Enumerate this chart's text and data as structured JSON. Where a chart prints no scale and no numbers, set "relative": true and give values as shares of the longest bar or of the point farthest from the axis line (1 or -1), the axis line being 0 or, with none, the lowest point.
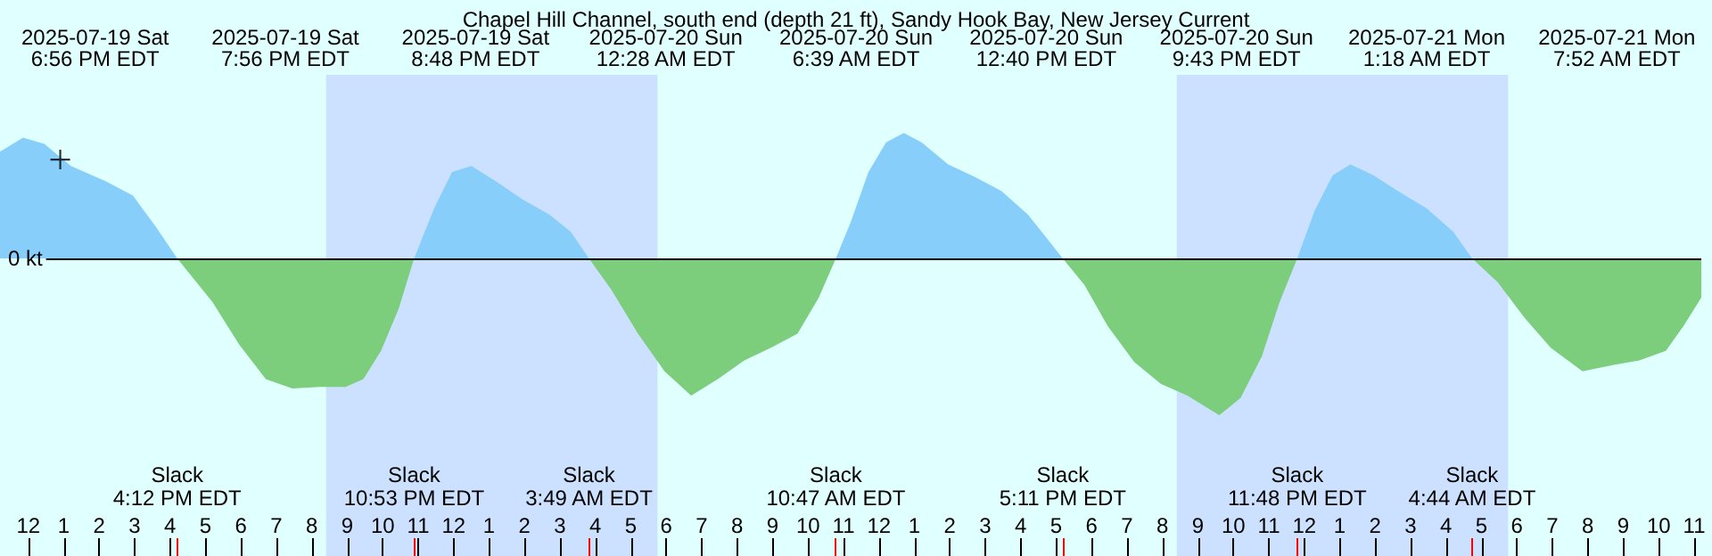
{
  "chart_data": {
    "type": "area",
    "title": "Chapel Hill Channel, south end (depth 21 ft), Sandy Hook Bay, New Jersey Current",
    "relative": true,
    "grid": false,
    "tick_labels": "x",
    "xlim": [
      "2025-07-19T11:12",
      "2025-07-21T11:12"
    ],
    "xticks": [
      {
        "value": "2025-07-19T12:00",
        "label": "12"
      },
      {
        "value": "2025-07-19T13:00",
        "label": "1"
      },
      {
        "value": "2025-07-19T14:00",
        "label": "2"
      },
      {
        "value": "2025-07-19T15:00",
        "label": "3"
      },
      {
        "value": "2025-07-19T16:00",
        "label": "4"
      },
      {
        "value": "2025-07-19T17:00",
        "label": "5"
      },
      {
        "value": "2025-07-19T18:00",
        "label": "6"
      },
      {
        "value": "2025-07-19T19:00",
        "label": "7"
      },
      {
        "value": "2025-07-19T20:00",
        "label": "8"
      },
      {
        "value": "2025-07-19T21:00",
        "label": "9"
      },
      {
        "value": "2025-07-19T22:00",
        "label": "10"
      },
      {
        "value": "2025-07-19T23:00",
        "label": "11"
      },
      {
        "value": "2025-07-20T00:00",
        "label": "12"
      },
      {
        "value": "2025-07-20T01:00",
        "label": "1"
      },
      {
        "value": "2025-07-20T02:00",
        "label": "2"
      },
      {
        "value": "2025-07-20T03:00",
        "label": "3"
      },
      {
        "value": "2025-07-20T04:00",
        "label": "4"
      },
      {
        "value": "2025-07-20T05:00",
        "label": "5"
      },
      {
        "value": "2025-07-20T06:00",
        "label": "6"
      },
      {
        "value": "2025-07-20T07:00",
        "label": "7"
      },
      {
        "value": "2025-07-20T08:00",
        "label": "8"
      },
      {
        "value": "2025-07-20T09:00",
        "label": "9"
      },
      {
        "value": "2025-07-20T10:00",
        "label": "10"
      },
      {
        "value": "2025-07-20T11:00",
        "label": "11"
      },
      {
        "value": "2025-07-20T12:00",
        "label": "12"
      },
      {
        "value": "2025-07-20T13:00",
        "label": "1"
      },
      {
        "value": "2025-07-20T14:00",
        "label": "2"
      },
      {
        "value": "2025-07-20T15:00",
        "label": "3"
      },
      {
        "value": "2025-07-20T16:00",
        "label": "4"
      },
      {
        "value": "2025-07-20T17:00",
        "label": "5"
      },
      {
        "value": "2025-07-20T18:00",
        "label": "6"
      },
      {
        "value": "2025-07-20T19:00",
        "label": "7"
      },
      {
        "value": "2025-07-20T20:00",
        "label": "8"
      },
      {
        "value": "2025-07-20T21:00",
        "label": "9"
      },
      {
        "value": "2025-07-20T22:00",
        "label": "10"
      },
      {
        "value": "2025-07-20T23:00",
        "label": "11"
      },
      {
        "value": "2025-07-21T00:00",
        "label": "12"
      },
      {
        "value": "2025-07-21T01:00",
        "label": "1"
      },
      {
        "value": "2025-07-21T02:00",
        "label": "2"
      },
      {
        "value": "2025-07-21T03:00",
        "label": "3"
      },
      {
        "value": "2025-07-21T04:00",
        "label": "4"
      },
      {
        "value": "2025-07-21T05:00",
        "label": "5"
      },
      {
        "value": "2025-07-21T06:00",
        "label": "6"
      },
      {
        "value": "2025-07-21T07:00",
        "label": "7"
      },
      {
        "value": "2025-07-21T08:00",
        "label": "8"
      },
      {
        "value": "2025-07-21T09:00",
        "label": "9"
      },
      {
        "value": "2025-07-21T10:00",
        "label": "10"
      },
      {
        "value": "2025-07-21T11:00",
        "label": "11"
      }
    ],
    "series": [
      {
        "color": "#87cefa",
        "x": [
          "2025-07-19T11:12",
          "2025-07-19T11:51",
          "2025-07-19T12:27",
          "2025-07-19T13:12",
          "2025-07-19T14:12",
          "2025-07-19T14:57",
          "2025-07-19T15:36",
          "2025-07-19T16:12",
          "2025-07-19T19:00",
          "2025-07-19T22:53",
          "2025-07-19T23:27",
          "2025-07-19T23:57",
          "2025-07-20T00:30",
          "2025-07-20T01:12",
          "2025-07-20T01:57",
          "2025-07-20T02:42",
          "2025-07-20T03:18",
          "2025-07-20T03:49",
          "2025-07-20T07:00",
          "2025-07-20T10:47",
          "2025-07-20T11:12",
          "2025-07-20T11:42",
          "2025-07-20T12:12",
          "2025-07-20T12:42",
          "2025-07-20T13:12",
          "2025-07-20T13:57",
          "2025-07-20T14:42",
          "2025-07-20T15:27",
          "2025-07-20T16:12",
          "2025-07-20T16:48",
          "2025-07-20T17:11",
          "2025-07-20T20:00",
          "2025-07-20T23:48",
          "2025-07-21T00:18",
          "2025-07-21T00:48",
          "2025-07-21T01:18",
          "2025-07-21T01:57",
          "2025-07-21T02:42",
          "2025-07-21T03:27",
          "2025-07-21T04:12",
          "2025-07-21T04:44"
        ],
        "values": [
          0.68,
          0.77,
          0.73,
          0.59,
          0.49,
          0.4,
          0.2,
          0,
          null,
          0,
          0.32,
          0.55,
          0.59,
          0.49,
          0.375,
          0.28,
          0.17,
          0,
          null,
          0,
          0.23,
          0.55,
          0.74,
          0.8,
          0.74,
          0.6,
          0.52,
          0.43,
          0.28,
          0.11,
          0,
          null,
          0,
          0.31,
          0.53,
          0.6,
          0.53,
          0.42,
          0.32,
          0.17,
          0
        ]
      },
      {
        "color": "#7ccd7c",
        "x": [
          "2025-07-19T16:12",
          "2025-07-19T17:12",
          "2025-07-19T17:57",
          "2025-07-19T18:42",
          "2025-07-19T19:27",
          "2025-07-19T20:12",
          "2025-07-19T20:57",
          "2025-07-19T21:27",
          "2025-07-19T21:57",
          "2025-07-19T22:27",
          "2025-07-19T22:53",
          "2025-07-20T01:00",
          "2025-07-20T03:49",
          "2025-07-20T04:27",
          "2025-07-20T05:12",
          "2025-07-20T05:57",
          "2025-07-20T06:42",
          "2025-07-20T07:27",
          "2025-07-20T08:12",
          "2025-07-20T08:57",
          "2025-07-20T09:42",
          "2025-07-20T10:18",
          "2025-07-20T10:47",
          "2025-07-20T14:00",
          "2025-07-20T17:11",
          "2025-07-20T17:48",
          "2025-07-20T18:27",
          "2025-07-20T19:12",
          "2025-07-20T19:57",
          "2025-07-20T20:42",
          "2025-07-20T21:36",
          "2025-07-20T22:12",
          "2025-07-20T22:48",
          "2025-07-20T23:18",
          "2025-07-20T23:48",
          "2025-07-21T02:00",
          "2025-07-21T04:44",
          "2025-07-21T05:27",
          "2025-07-21T06:12",
          "2025-07-21T06:57",
          "2025-07-21T07:51",
          "2025-07-21T08:42",
          "2025-07-21T09:27",
          "2025-07-21T10:12",
          "2025-07-21T10:42",
          "2025-07-21T11:12"
        ],
        "values": [
          0,
          -0.28,
          -0.55,
          -0.77,
          -0.83,
          -0.82,
          -0.82,
          -0.77,
          -0.59,
          -0.32,
          0,
          null,
          0,
          -0.2,
          -0.48,
          -0.72,
          -0.875,
          -0.77,
          -0.65,
          -0.57,
          -0.48,
          -0.25,
          0,
          null,
          0,
          -0.17,
          -0.43,
          -0.66,
          -0.8,
          -0.875,
          -1,
          -0.89,
          -0.625,
          -0.28,
          0,
          null,
          0,
          -0.15,
          -0.375,
          -0.57,
          -0.72,
          -0.68,
          -0.65,
          -0.59,
          -0.43,
          -0.25
        ]
      },
      {
        "type": "scatter",
        "marker": "cross",
        "color": "#000000",
        "x": [
          "2025-07-19T12:54"
        ],
        "values": [
          0.63
        ]
      }
    ],
    "bands": [
      {
        "axis": "x",
        "from": "2025-07-19T20:24",
        "to": "2025-07-20T05:45",
        "color": "#cce0ff"
      },
      {
        "axis": "x",
        "from": "2025-07-20T20:24",
        "to": "2025-07-21T05:45",
        "color": "#cce0ff"
      }
    ],
    "ref_lines": [
      {
        "axis": "y",
        "value": 0,
        "label": "0 kt",
        "color": "#000000"
      },
      {
        "axis": "x",
        "value": "2025-07-19T16:12",
        "label": "Slack\n4:12 PM EDT",
        "color": "#ff0000"
      },
      {
        "axis": "x",
        "value": "2025-07-19T22:53",
        "label": "Slack\n10:53 PM EDT",
        "color": "#ff0000"
      },
      {
        "axis": "x",
        "value": "2025-07-20T03:49",
        "label": "Slack\n3:49 AM EDT",
        "color": "#ff0000"
      },
      {
        "axis": "x",
        "value": "2025-07-20T10:47",
        "label": "Slack\n10:47 AM EDT",
        "color": "#ff0000"
      },
      {
        "axis": "x",
        "value": "2025-07-20T17:11",
        "label": "Slack\n5:11 PM EDT",
        "color": "#ff0000"
      },
      {
        "axis": "x",
        "value": "2025-07-20T23:48",
        "label": "Slack\n11:48 PM EDT",
        "color": "#ff0000"
      },
      {
        "axis": "x",
        "value": "2025-07-21T04:44",
        "label": "Slack\n4:44 AM EDT",
        "color": "#ff0000"
      }
    ],
    "annotations": [
      "2025-07-19 Sat\n6:56 PM EDT",
      "2025-07-19 Sat\n7:56 PM EDT",
      "2025-07-19 Sat\n8:48 PM EDT",
      "2025-07-20 Sun\n12:28 AM EDT",
      "2025-07-20 Sun\n6:39 AM EDT",
      "2025-07-20 Sun\n12:40 PM EDT",
      "2025-07-20 Sun\n9:43 PM EDT",
      "2025-07-21 Mon\n1:18 AM EDT",
      "2025-07-21 Mon\n7:52 AM EDT"
    ]
  }
}
